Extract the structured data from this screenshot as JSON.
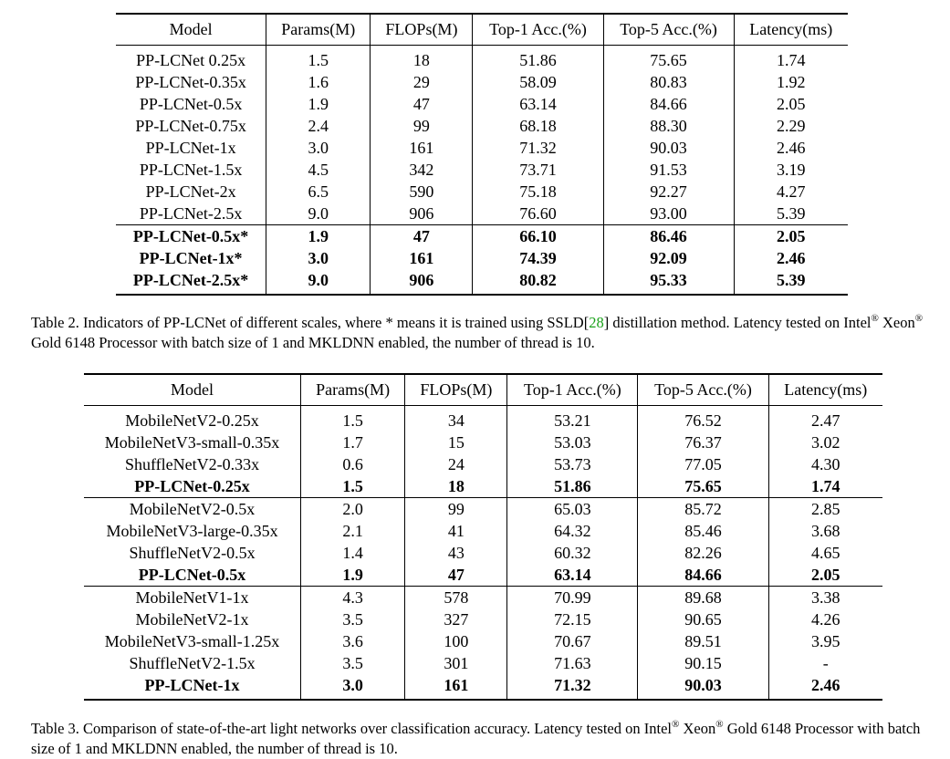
{
  "table2": {
    "headers": [
      "Model",
      "Params(M)",
      "FLOPs(M)",
      "Top-1 Acc.(%)",
      "Top-5 Acc.(%)",
      "Latency(ms)"
    ],
    "rows": [
      [
        "PP-LCNet 0.25x",
        "1.5",
        "18",
        "51.86",
        "75.65",
        "1.74"
      ],
      [
        "PP-LCNet-0.35x",
        "1.6",
        "29",
        "58.09",
        "80.83",
        "1.92"
      ],
      [
        "PP-LCNet-0.5x",
        "1.9",
        "47",
        "63.14",
        "84.66",
        "2.05"
      ],
      [
        "PP-LCNet-0.75x",
        "2.4",
        "99",
        "68.18",
        "88.30",
        "2.29"
      ],
      [
        "PP-LCNet-1x",
        "3.0",
        "161",
        "71.32",
        "90.03",
        "2.46"
      ],
      [
        "PP-LCNet-1.5x",
        "4.5",
        "342",
        "73.71",
        "91.53",
        "3.19"
      ],
      [
        "PP-LCNet-2x",
        "6.5",
        "590",
        "75.18",
        "92.27",
        "4.27"
      ],
      [
        "PP-LCNet-2.5x",
        "9.0",
        "906",
        "76.60",
        "93.00",
        "5.39"
      ],
      [
        "PP-LCNet-0.5x*",
        "1.9",
        "47",
        "66.10",
        "86.46",
        "2.05"
      ],
      [
        "PP-LCNet-1x*",
        "3.0",
        "161",
        "74.39",
        "92.09",
        "2.46"
      ],
      [
        "PP-LCNet-2.5x*",
        "9.0",
        "906",
        "80.82",
        "95.33",
        "5.39"
      ]
    ]
  },
  "caption2": {
    "part1": "Table 2. Indicators of PP-LCNet of different scales, where * means it is trained using SSLD[",
    "ref": "28",
    "part2": "] distillation method.  Latency tested on Intel",
    "reg": "®",
    "part3": " Xeon",
    "part4": " Gold 6148 Processor with batch size of 1 and MKLDNN enabled, the number of thread is 10."
  },
  "table3": {
    "headers": [
      "Model",
      "Params(M)",
      "FLOPs(M)",
      "Top-1 Acc.(%)",
      "Top-5 Acc.(%)",
      "Latency(ms)"
    ],
    "rows": [
      [
        "MobileNetV2-0.25x",
        "1.5",
        "34",
        "53.21",
        "76.52",
        "2.47"
      ],
      [
        "MobileNetV3-small-0.35x",
        "1.7",
        "15",
        "53.03",
        "76.37",
        "3.02"
      ],
      [
        "ShuffleNetV2-0.33x",
        "0.6",
        "24",
        "53.73",
        "77.05",
        "4.30"
      ],
      [
        "PP-LCNet-0.25x",
        "1.5",
        "18",
        "51.86",
        "75.65",
        "1.74"
      ],
      [
        "MobileNetV2-0.5x",
        "2.0",
        "99",
        "65.03",
        "85.72",
        "2.85"
      ],
      [
        "MobileNetV3-large-0.35x",
        "2.1",
        "41",
        "64.32",
        "85.46",
        "3.68"
      ],
      [
        "ShuffleNetV2-0.5x",
        "1.4",
        "43",
        "60.32",
        "82.26",
        "4.65"
      ],
      [
        "PP-LCNet-0.5x",
        "1.9",
        "47",
        "63.14",
        "84.66",
        "2.05"
      ],
      [
        "MobileNetV1-1x",
        "4.3",
        "578",
        "70.99",
        "89.68",
        "3.38"
      ],
      [
        "MobileNetV2-1x",
        "3.5",
        "327",
        "72.15",
        "90.65",
        "4.26"
      ],
      [
        "MobileNetV3-small-1.25x",
        "3.6",
        "100",
        "70.67",
        "89.51",
        "3.95"
      ],
      [
        "ShuffleNetV2-1.5x",
        "3.5",
        "301",
        "71.63",
        "90.15",
        "-"
      ],
      [
        "PP-LCNet-1x",
        "3.0",
        "161",
        "71.32",
        "90.03",
        "2.46"
      ]
    ]
  },
  "caption3": {
    "part1": "Table 3. Comparison of state-of-the-art light networks over classification accuracy. Latency tested on Intel",
    "reg": "®",
    "part2": " Xeon",
    "part3": " Gold 6148 Processor with batch size of 1 and MKLDNN enabled, the number of thread is 10."
  }
}
